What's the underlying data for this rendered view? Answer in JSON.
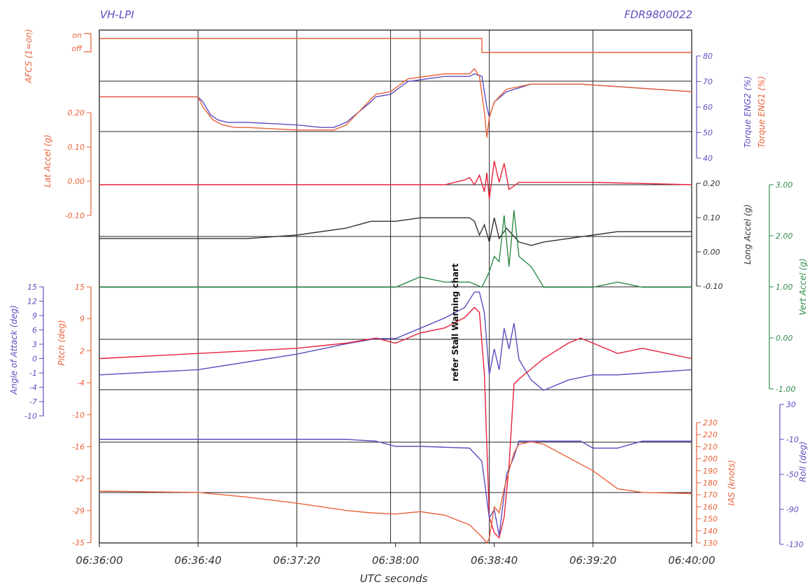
{
  "header": {
    "left": "VH-LPI",
    "right": "FDR9800022"
  },
  "annotation": "refer Stall Warning chart",
  "chart_data": {
    "type": "line",
    "title": "",
    "xlabel": "UTC seconds",
    "x_ticks": [
      "06:36:00",
      "06:36:40",
      "06:37:20",
      "06:38:00",
      "06:38:40",
      "06:39:20",
      "06:40:00"
    ],
    "x_range_s": [
      0,
      240
    ],
    "grid": "vertical lines at each time tick; horizontal reference lines per panel",
    "axes": {
      "afcs": {
        "label": "AFCS (1=on)",
        "ticks": [
          "on",
          "off"
        ]
      },
      "torque": {
        "label1": "Torque ENG2 (%)",
        "label2": "Torque ENG1 (%)",
        "ticks": [
          "80",
          "70",
          "60",
          "50",
          "40"
        ],
        "range": [
          40,
          80
        ]
      },
      "lat": {
        "label": "Lat Accel (g)",
        "ticks": [
          "0.20",
          "0.10",
          "0.00",
          "-0.10"
        ],
        "range": [
          -0.1,
          0.2
        ]
      },
      "long": {
        "label": "Long Accel (g)",
        "ticks": [
          "0.20",
          "0.10",
          "0.00",
          "-0.10"
        ],
        "range": [
          -0.1,
          0.2
        ]
      },
      "vert": {
        "label": "Vert Accel (g)",
        "ticks": [
          "3.00",
          "2.00",
          "1.00",
          "0.00",
          "-1.00"
        ],
        "range": [
          -1.0,
          3.0
        ]
      },
      "aoa": {
        "label": "Angle of Attack (deg)",
        "ticks": [
          "15",
          "12",
          "9",
          "6",
          "3",
          "0",
          "-1",
          "-4",
          "-7",
          "-10"
        ]
      },
      "pitch": {
        "label": "Pitch (deg)",
        "ticks": [
          "15",
          "9",
          "2",
          "-4",
          "-10",
          "-16",
          "-22",
          "-29",
          "-35"
        ],
        "range": [
          -35,
          15
        ]
      },
      "roll": {
        "label": "Roll (deg)",
        "ticks": [
          "30",
          "-10",
          "-50",
          "-90",
          "-130"
        ],
        "range": [
          -130,
          30
        ]
      },
      "ias": {
        "label": "IAS (knots)",
        "ticks": [
          "230",
          "220",
          "210",
          "200",
          "190",
          "180",
          "170",
          "160",
          "150",
          "140",
          "130"
        ],
        "range": [
          130,
          230
        ]
      }
    },
    "series": [
      {
        "name": "AFCS",
        "color": "#e8623a",
        "x": [
          0,
          155,
          155.2,
          240
        ],
        "y": [
          1,
          1,
          0,
          0
        ]
      },
      {
        "name": "Torque ENG2",
        "color": "#5a4fc0",
        "x": [
          0,
          20,
          40,
          42,
          45,
          48,
          52,
          60,
          80,
          90,
          95,
          100,
          105,
          110,
          112,
          118,
          125,
          140,
          150,
          152,
          155,
          157,
          158,
          160,
          165,
          175,
          195,
          210,
          240
        ],
        "y": [
          64,
          64,
          64,
          62,
          57,
          55,
          54,
          54,
          53,
          52,
          52,
          54,
          58,
          62,
          64,
          65,
          70,
          72,
          72,
          73,
          72,
          60,
          56,
          62,
          66,
          69,
          69,
          68,
          66
        ]
      },
      {
        "name": "Torque ENG1",
        "color": "#e8623a",
        "x": [
          0,
          20,
          40,
          42,
          46,
          50,
          55,
          60,
          80,
          90,
          95,
          100,
          105,
          110,
          112,
          118,
          125,
          140,
          150,
          152,
          154,
          156,
          157,
          158,
          160,
          165,
          175,
          195,
          210,
          240
        ],
        "y": [
          64,
          64,
          64,
          60,
          55,
          53,
          52,
          52,
          51,
          51,
          51,
          53,
          58,
          63,
          65,
          66,
          71,
          73,
          73,
          75,
          72,
          58,
          48,
          56,
          62,
          67,
          69,
          69,
          68,
          66
        ]
      },
      {
        "name": "Lat Accel",
        "color": "#e8203a",
        "x": [
          0,
          40,
          80,
          120,
          140,
          148,
          150,
          152,
          154,
          156,
          157,
          158,
          160,
          162,
          164,
          166,
          170,
          175,
          200,
          240
        ],
        "y": [
          0.0,
          0.0,
          0.0,
          0.0,
          0.0,
          0.02,
          0.03,
          0.0,
          0.04,
          -0.03,
          0.05,
          -0.06,
          0.1,
          0.01,
          0.09,
          -0.02,
          0.01,
          0.01,
          0.01,
          0.0
        ]
      },
      {
        "name": "Long Accel",
        "color": "#333333",
        "x": [
          0,
          40,
          60,
          80,
          100,
          110,
          120,
          130,
          140,
          150,
          152,
          154,
          156,
          158,
          160,
          162,
          165,
          170,
          175,
          180,
          200,
          210,
          220,
          240
        ],
        "y": [
          0.04,
          0.04,
          0.04,
          0.05,
          0.07,
          0.09,
          0.09,
          0.1,
          0.1,
          0.1,
          0.09,
          0.05,
          0.08,
          0.03,
          0.1,
          0.04,
          0.07,
          0.03,
          0.02,
          0.03,
          0.05,
          0.06,
          0.06,
          0.06
        ]
      },
      {
        "name": "Vert Accel",
        "color": "#2e8b4a",
        "x": [
          0,
          40,
          80,
          120,
          125,
          130,
          140,
          150,
          155,
          158,
          160,
          162,
          164,
          166,
          168,
          170,
          175,
          180,
          190,
          200,
          210,
          220,
          240
        ],
        "y": [
          1.0,
          1.0,
          1.0,
          1.0,
          1.1,
          1.2,
          1.1,
          1.1,
          1.0,
          1.3,
          1.6,
          1.5,
          2.4,
          1.4,
          2.5,
          1.6,
          1.4,
          1.0,
          1.0,
          1.0,
          1.1,
          1.0,
          1.0
        ]
      },
      {
        "name": "Angle of Attack",
        "color": "#5a4fc0",
        "x": [
          0,
          40,
          80,
          100,
          112,
          120,
          130,
          140,
          148,
          152,
          154,
          156,
          158,
          160,
          162,
          164,
          166,
          168,
          170,
          175,
          180,
          190,
          200,
          210,
          240
        ],
        "y": [
          -2,
          -1,
          2,
          4,
          5,
          5,
          7,
          9,
          11,
          14,
          14,
          10,
          -2,
          3,
          -1,
          7,
          3,
          8,
          1,
          -3,
          -5,
          -3,
          -2,
          -2,
          -1
        ]
      },
      {
        "name": "Pitch",
        "color": "#e8203a",
        "x": [
          0,
          40,
          80,
          100,
          112,
          120,
          130,
          140,
          148,
          152,
          154,
          156,
          158,
          160,
          162,
          164,
          166,
          168,
          170,
          175,
          180,
          190,
          195,
          200,
          210,
          220,
          240
        ],
        "y": [
          1,
          2,
          3,
          4,
          5,
          4,
          6,
          7,
          9,
          11,
          10,
          -2,
          -30,
          -33,
          -34,
          -30,
          -20,
          -4,
          -3,
          -1,
          1,
          4,
          5,
          4,
          2,
          3,
          1
        ]
      },
      {
        "name": "Roll",
        "color": "#5a4fc0",
        "x": [
          0,
          100,
          112,
          120,
          130,
          150,
          155,
          158,
          160,
          162,
          165,
          168,
          170,
          175,
          195,
          200,
          210,
          220,
          240
        ],
        "y": [
          -10,
          -10,
          -12,
          -18,
          -18,
          -20,
          -35,
          -100,
          -90,
          -120,
          -50,
          -30,
          -12,
          -12,
          -12,
          -20,
          -20,
          -12,
          -12
        ]
      },
      {
        "name": "IAS",
        "color": "#e8623a",
        "x": [
          0,
          40,
          60,
          80,
          100,
          110,
          120,
          130,
          140,
          150,
          155,
          157,
          158,
          160,
          162,
          164,
          166,
          168,
          170,
          175,
          180,
          200,
          210,
          220,
          240
        ],
        "y": [
          173,
          172,
          168,
          163,
          157,
          155,
          154,
          156,
          153,
          145,
          135,
          130,
          134,
          160,
          155,
          175,
          190,
          205,
          212,
          214,
          212,
          190,
          175,
          172,
          171
        ]
      }
    ]
  }
}
